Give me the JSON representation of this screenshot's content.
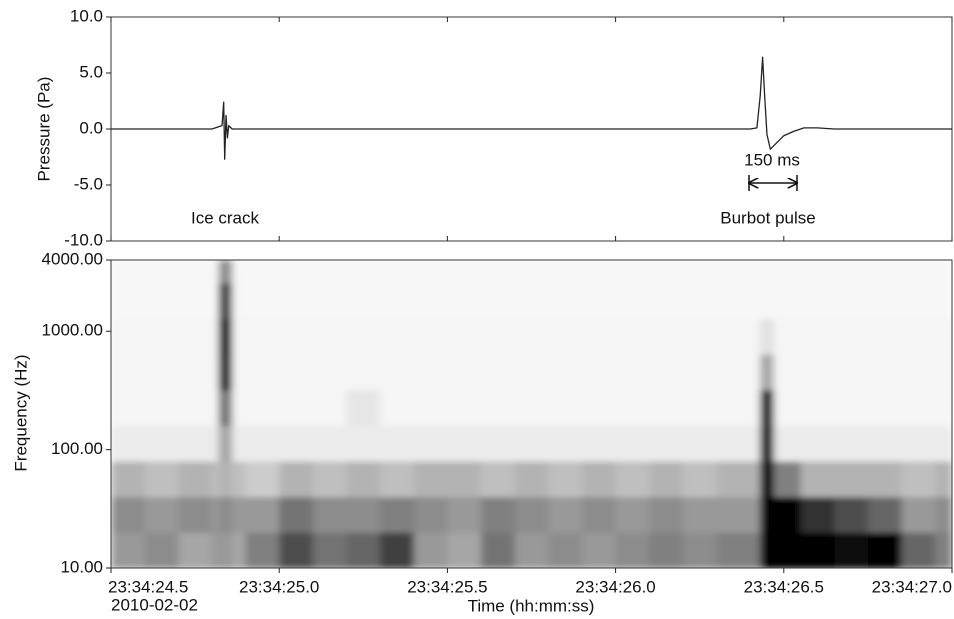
{
  "chart_data": [
    {
      "type": "line",
      "ylabel": "Pressure (Pa)",
      "ylim": [
        -10,
        10
      ],
      "yticks": [
        {
          "value": 10,
          "label": "10.0"
        },
        {
          "value": 5,
          "label": "5.0"
        },
        {
          "value": 0,
          "label": "0.0"
        },
        {
          "value": -5,
          "label": "-5.0"
        },
        {
          "value": -10,
          "label": "-10.0"
        }
      ],
      "xlim": [
        84864.5,
        84867.0
      ],
      "x": [
        84864.5,
        84864.6,
        84864.7,
        84864.8,
        84864.83,
        84864.835,
        84864.838,
        84864.842,
        84864.846,
        84864.85,
        84864.86,
        84865.0,
        84865.5,
        84866.0,
        84866.4,
        84866.42,
        84866.43,
        84866.437,
        84866.443,
        84866.45,
        84866.46,
        84866.48,
        84866.5,
        84866.53,
        84866.56,
        84866.6,
        84866.65,
        84867.0
      ],
      "values": [
        0,
        0,
        0,
        0,
        0.3,
        2.4,
        -2.7,
        1.2,
        -0.8,
        0.3,
        0,
        0,
        0,
        0,
        0,
        0.1,
        3,
        6.4,
        3,
        -0.5,
        -1.8,
        -1.2,
        -0.6,
        -0.2,
        0.1,
        0.1,
        0,
        0
      ],
      "color": "#222222",
      "annotations": [
        "Ice crack",
        "Burbot pulse",
        "150 ms"
      ]
    },
    {
      "type": "heatmap",
      "ylabel": "Frequency (Hz)",
      "xlabel": "Time (hh:mm:ss)",
      "date": "2010-02-02",
      "yscale": "log",
      "ylim": [
        10,
        4000
      ],
      "yticks": [
        {
          "value": 10,
          "label": "10.00"
        },
        {
          "value": 100,
          "label": "100.00"
        },
        {
          "value": 1000,
          "label": "1000.00"
        },
        {
          "value": 4000,
          "label": "4000.00"
        }
      ],
      "xlim": [
        84864.5,
        84867.0
      ],
      "xticks": [
        {
          "value": 84864.5,
          "label": "23:34:24.5"
        },
        {
          "value": 84865.0,
          "label": "23:34:25.0"
        },
        {
          "value": 84865.5,
          "label": "23:34:25.5"
        },
        {
          "value": 84866.0,
          "label": "23:34:26.0"
        },
        {
          "value": 84866.5,
          "label": "23:34:26.5"
        },
        {
          "value": 84867.0,
          "label": "23:34:27.0"
        }
      ],
      "x_edges": [
        84864.5,
        84864.6,
        84864.7,
        84864.8,
        84864.82,
        84864.86,
        84864.9,
        84865.0,
        84865.1,
        84865.2,
        84865.3,
        84865.4,
        84865.5,
        84865.6,
        84865.7,
        84865.8,
        84865.9,
        84866.0,
        84866.1,
        84866.2,
        84866.3,
        84866.43,
        84866.47,
        84866.55,
        84866.65,
        84866.75,
        84866.85,
        84866.95,
        84867.0
      ],
      "y_edges": [
        10,
        20,
        40,
        80,
        160,
        320,
        640,
        1280,
        2560,
        4000
      ],
      "z": [
        [
          0.4,
          0.45,
          0.35,
          0.4,
          0.4,
          0.35,
          0.5,
          0.7,
          0.55,
          0.6,
          0.75,
          0.4,
          0.35,
          0.55,
          0.4,
          0.45,
          0.4,
          0.45,
          0.5,
          0.45,
          0.5,
          1,
          1,
          1,
          0.95,
          1,
          0.6,
          0.5
        ],
        [
          0.45,
          0.4,
          0.45,
          0.4,
          0.45,
          0.4,
          0.4,
          0.55,
          0.45,
          0.45,
          0.5,
          0.45,
          0.4,
          0.5,
          0.45,
          0.4,
          0.45,
          0.4,
          0.45,
          0.4,
          0.4,
          1,
          1,
          0.8,
          0.7,
          0.6,
          0.4,
          0.45
        ],
        [
          0.3,
          0.25,
          0.3,
          0.25,
          0.3,
          0.25,
          0.2,
          0.3,
          0.25,
          0.3,
          0.25,
          0.3,
          0.3,
          0.25,
          0.3,
          0.25,
          0.3,
          0.25,
          0.3,
          0.25,
          0.3,
          1,
          0.5,
          0.3,
          0.3,
          0.3,
          0.25,
          0.3
        ],
        [
          0.08,
          0.08,
          0.08,
          0.08,
          0.35,
          0.08,
          0.08,
          0.08,
          0.08,
          0.08,
          0.08,
          0.08,
          0.08,
          0.08,
          0.08,
          0.08,
          0.08,
          0.08,
          0.08,
          0.08,
          0.08,
          1,
          0.08,
          0.08,
          0.08,
          0.08,
          0.08,
          0.08
        ],
        [
          0.04,
          0.04,
          0.04,
          0.04,
          0.55,
          0.04,
          0.04,
          0.04,
          0.04,
          0.1,
          0.04,
          0.04,
          0.04,
          0.04,
          0.04,
          0.04,
          0.04,
          0.04,
          0.04,
          0.04,
          0.04,
          0.95,
          0.04,
          0.04,
          0.04,
          0.04,
          0.04,
          0.04
        ],
        [
          0.04,
          0.04,
          0.04,
          0.04,
          0.9,
          0.04,
          0.04,
          0.04,
          0.04,
          0.04,
          0.04,
          0.04,
          0.04,
          0.04,
          0.04,
          0.04,
          0.04,
          0.04,
          0.04,
          0.04,
          0.04,
          0.35,
          0.04,
          0.04,
          0.04,
          0.04,
          0.04,
          0.04
        ],
        [
          0.04,
          0.04,
          0.04,
          0.04,
          1,
          0.04,
          0.04,
          0.04,
          0.04,
          0.04,
          0.04,
          0.04,
          0.04,
          0.04,
          0.04,
          0.04,
          0.04,
          0.04,
          0.04,
          0.04,
          0.04,
          0.12,
          0.04,
          0.04,
          0.04,
          0.04,
          0.04,
          0.04
        ],
        [
          0.03,
          0.03,
          0.03,
          0.03,
          0.75,
          0.03,
          0.03,
          0.03,
          0.03,
          0.03,
          0.03,
          0.03,
          0.03,
          0.03,
          0.03,
          0.03,
          0.03,
          0.03,
          0.03,
          0.03,
          0.03,
          0.03,
          0.03,
          0.03,
          0.03,
          0.03,
          0.03,
          0.03
        ],
        [
          0.03,
          0.03,
          0.03,
          0.03,
          0.45,
          0.03,
          0.03,
          0.03,
          0.03,
          0.03,
          0.03,
          0.03,
          0.03,
          0.03,
          0.03,
          0.03,
          0.03,
          0.03,
          0.03,
          0.03,
          0.03,
          0.03,
          0.03,
          0.03,
          0.03,
          0.03,
          0.03,
          0.03
        ]
      ]
    }
  ]
}
